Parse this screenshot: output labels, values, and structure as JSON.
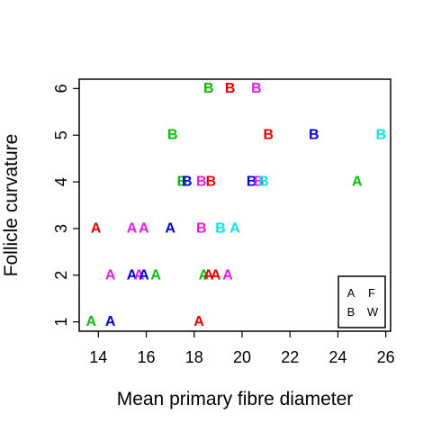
{
  "chart_data": {
    "type": "scatter",
    "xlabel": "Mean primary fibre diameter",
    "ylabel": "Follicle curvature",
    "xlim": [
      13.2,
      26.2
    ],
    "ylim": [
      0.8,
      6.2
    ],
    "x_ticks": [
      14,
      16,
      18,
      20,
      22,
      24,
      26
    ],
    "y_ticks": [
      1,
      2,
      3,
      4,
      5,
      6
    ],
    "grid": false,
    "legend_position": "bottom-right",
    "legend_entries": [
      "A",
      "F",
      "B",
      "W"
    ],
    "colors": {
      "red": "#df0000",
      "green": "#00bf00",
      "blue": "#0000cd",
      "cyan": "#00e5e5",
      "magenta": "#e519e5"
    },
    "points": [
      {
        "x": 13.7,
        "y": 1,
        "label": "A",
        "color": "green"
      },
      {
        "x": 14.5,
        "y": 1,
        "label": "A",
        "color": "blue"
      },
      {
        "x": 18.2,
        "y": 1,
        "label": "A",
        "color": "red"
      },
      {
        "x": 14.5,
        "y": 2,
        "label": "A",
        "color": "magenta"
      },
      {
        "x": 15.4,
        "y": 2,
        "label": "A",
        "color": "blue"
      },
      {
        "x": 15.7,
        "y": 2,
        "label": "A",
        "color": "magenta"
      },
      {
        "x": 15.9,
        "y": 2,
        "label": "A",
        "color": "blue"
      },
      {
        "x": 16.4,
        "y": 2,
        "label": "A",
        "color": "green"
      },
      {
        "x": 18.4,
        "y": 2,
        "label": "A",
        "color": "green"
      },
      {
        "x": 18.6,
        "y": 2,
        "label": "A",
        "color": "red"
      },
      {
        "x": 18.9,
        "y": 2,
        "label": "A",
        "color": "red"
      },
      {
        "x": 19.4,
        "y": 2,
        "label": "A",
        "color": "magenta"
      },
      {
        "x": 13.9,
        "y": 3,
        "label": "A",
        "color": "red"
      },
      {
        "x": 15.4,
        "y": 3,
        "label": "A",
        "color": "magenta"
      },
      {
        "x": 15.9,
        "y": 3,
        "label": "A",
        "color": "magenta"
      },
      {
        "x": 17.0,
        "y": 3,
        "label": "A",
        "color": "blue"
      },
      {
        "x": 18.3,
        "y": 3,
        "label": "B",
        "color": "magenta"
      },
      {
        "x": 19.1,
        "y": 3,
        "label": "B",
        "color": "cyan"
      },
      {
        "x": 19.7,
        "y": 3,
        "label": "A",
        "color": "cyan"
      },
      {
        "x": 17.5,
        "y": 4,
        "label": "B",
        "color": "green"
      },
      {
        "x": 17.7,
        "y": 4,
        "label": "B",
        "color": "blue"
      },
      {
        "x": 18.3,
        "y": 4,
        "label": "B",
        "color": "magenta"
      },
      {
        "x": 18.7,
        "y": 4,
        "label": "B",
        "color": "red"
      },
      {
        "x": 20.4,
        "y": 4,
        "label": "B",
        "color": "blue"
      },
      {
        "x": 20.7,
        "y": 4,
        "label": "B",
        "color": "magenta"
      },
      {
        "x": 20.9,
        "y": 4,
        "label": "B",
        "color": "cyan"
      },
      {
        "x": 24.8,
        "y": 4,
        "label": "A",
        "color": "green"
      },
      {
        "x": 17.1,
        "y": 5,
        "label": "B",
        "color": "green"
      },
      {
        "x": 21.1,
        "y": 5,
        "label": "B",
        "color": "red"
      },
      {
        "x": 23.0,
        "y": 5,
        "label": "B",
        "color": "blue"
      },
      {
        "x": 25.8,
        "y": 5,
        "label": "B",
        "color": "cyan"
      },
      {
        "x": 18.6,
        "y": 6,
        "label": "B",
        "color": "green"
      },
      {
        "x": 19.5,
        "y": 6,
        "label": "B",
        "color": "red"
      },
      {
        "x": 20.6,
        "y": 6,
        "label": "B",
        "color": "magenta"
      }
    ]
  }
}
